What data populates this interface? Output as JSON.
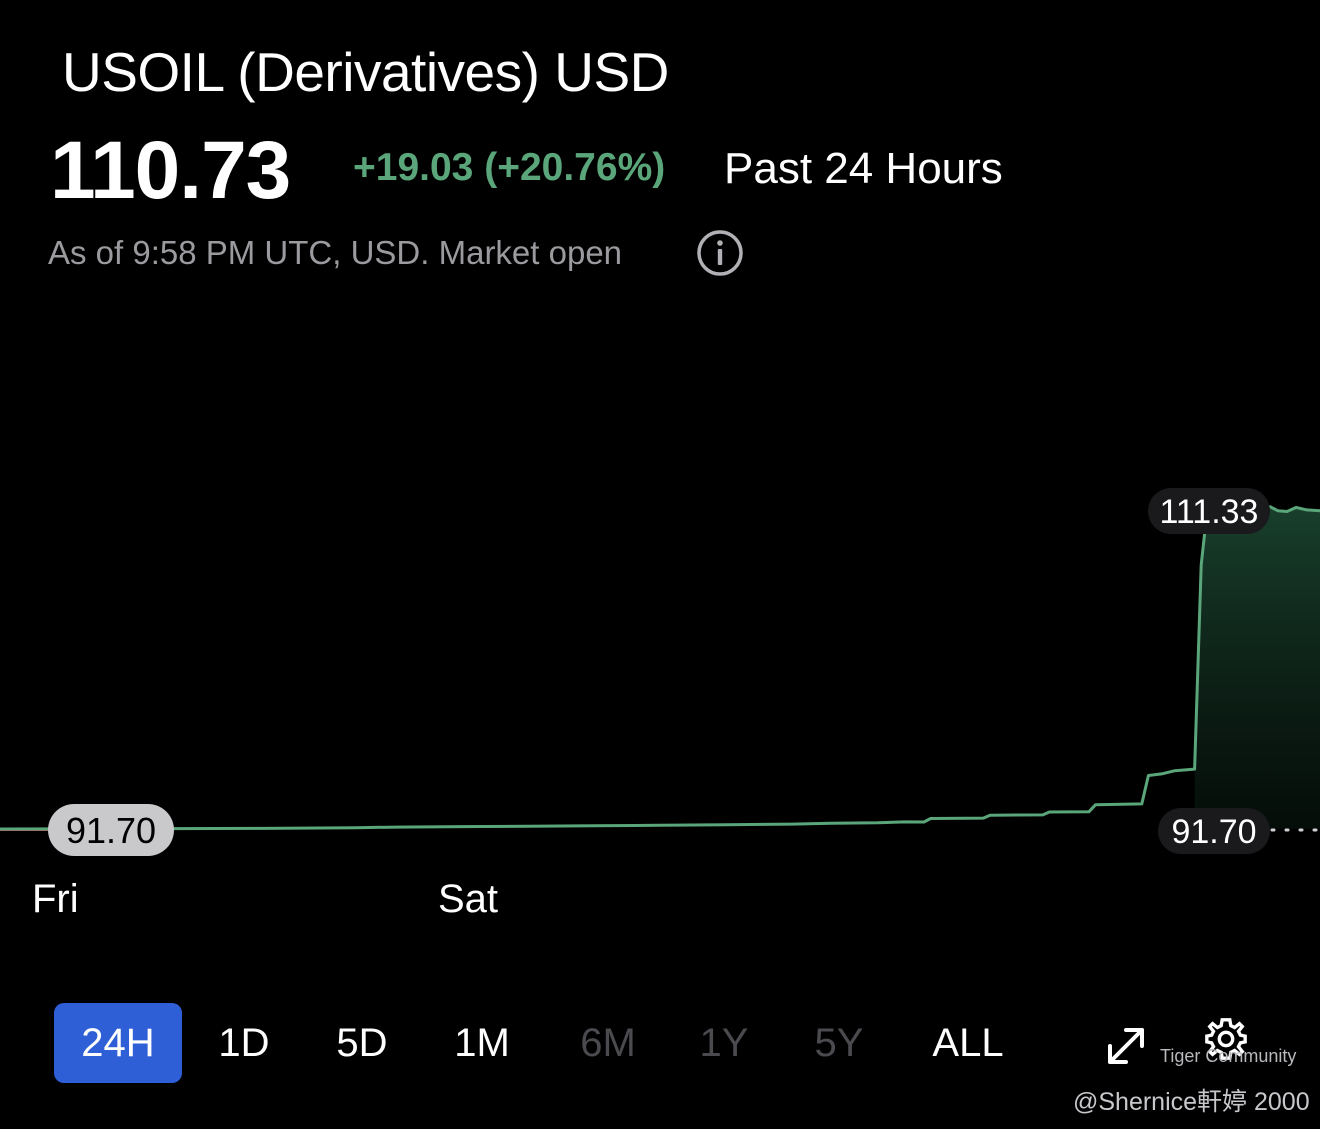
{
  "header": {
    "title": "USOIL (Derivatives) USD",
    "price": "110.73",
    "change": "+19.03 (+20.76%)",
    "period": "Past 24 Hours",
    "as_of": "As of 9:58 PM UTC, USD. Market open"
  },
  "range_tabs": [
    {
      "label": "24H",
      "state": "active"
    },
    {
      "label": "1D",
      "state": "enabled"
    },
    {
      "label": "5D",
      "state": "enabled"
    },
    {
      "label": "1M",
      "state": "enabled"
    },
    {
      "label": "6M",
      "state": "disabled"
    },
    {
      "label": "1Y",
      "state": "disabled"
    },
    {
      "label": "5Y",
      "state": "disabled"
    },
    {
      "label": "ALL",
      "state": "enabled"
    }
  ],
  "icons": {
    "info": "info-icon",
    "expand": "expand-arrows-icon",
    "settings": "gear-icon"
  },
  "watermark": {
    "brand": "Tiger Community",
    "credit": "@Shernice軒婷 2000"
  },
  "colors": {
    "line": "#5aa67a",
    "active_tab": "#2f5fd6",
    "baseline_marker": "#c0504d"
  },
  "chart_data": {
    "type": "area",
    "x_ticks": [
      {
        "label": "Fri",
        "t": 0.0
      },
      {
        "label": "Sat",
        "t": 0.306
      }
    ],
    "reference_line": {
      "value": 91.7,
      "label": "91.70"
    },
    "start_label": "91.70",
    "high_label": {
      "value": 111.33,
      "label": "111.33"
    },
    "series": [
      {
        "points": [
          [
            0.0,
            91.7
          ],
          [
            0.1,
            91.72
          ],
          [
            0.2,
            91.74
          ],
          [
            0.27,
            91.78
          ],
          [
            0.3,
            91.82
          ],
          [
            0.35,
            91.85
          ],
          [
            0.4,
            91.87
          ],
          [
            0.45,
            91.9
          ],
          [
            0.5,
            91.93
          ],
          [
            0.55,
            91.96
          ],
          [
            0.6,
            92.0
          ],
          [
            0.63,
            92.06
          ],
          [
            0.665,
            92.08
          ],
          [
            0.685,
            92.14
          ],
          [
            0.7,
            92.13
          ],
          [
            0.705,
            92.35
          ],
          [
            0.745,
            92.37
          ],
          [
            0.75,
            92.55
          ],
          [
            0.79,
            92.57
          ],
          [
            0.795,
            92.75
          ],
          [
            0.825,
            92.77
          ],
          [
            0.83,
            93.2
          ],
          [
            0.865,
            93.25
          ],
          [
            0.87,
            95.0
          ],
          [
            0.88,
            95.1
          ],
          [
            0.89,
            95.3
          ],
          [
            0.905,
            95.4
          ],
          [
            0.91,
            108.0
          ],
          [
            0.914,
            111.0
          ],
          [
            0.935,
            111.1
          ],
          [
            0.945,
            111.4
          ],
          [
            0.95,
            111.0
          ],
          [
            0.955,
            111.5
          ],
          [
            0.962,
            111.6
          ],
          [
            0.968,
            111.35
          ],
          [
            0.975,
            111.3
          ],
          [
            0.982,
            111.55
          ],
          [
            0.99,
            111.4
          ],
          [
            1.0,
            111.35
          ]
        ]
      }
    ]
  }
}
